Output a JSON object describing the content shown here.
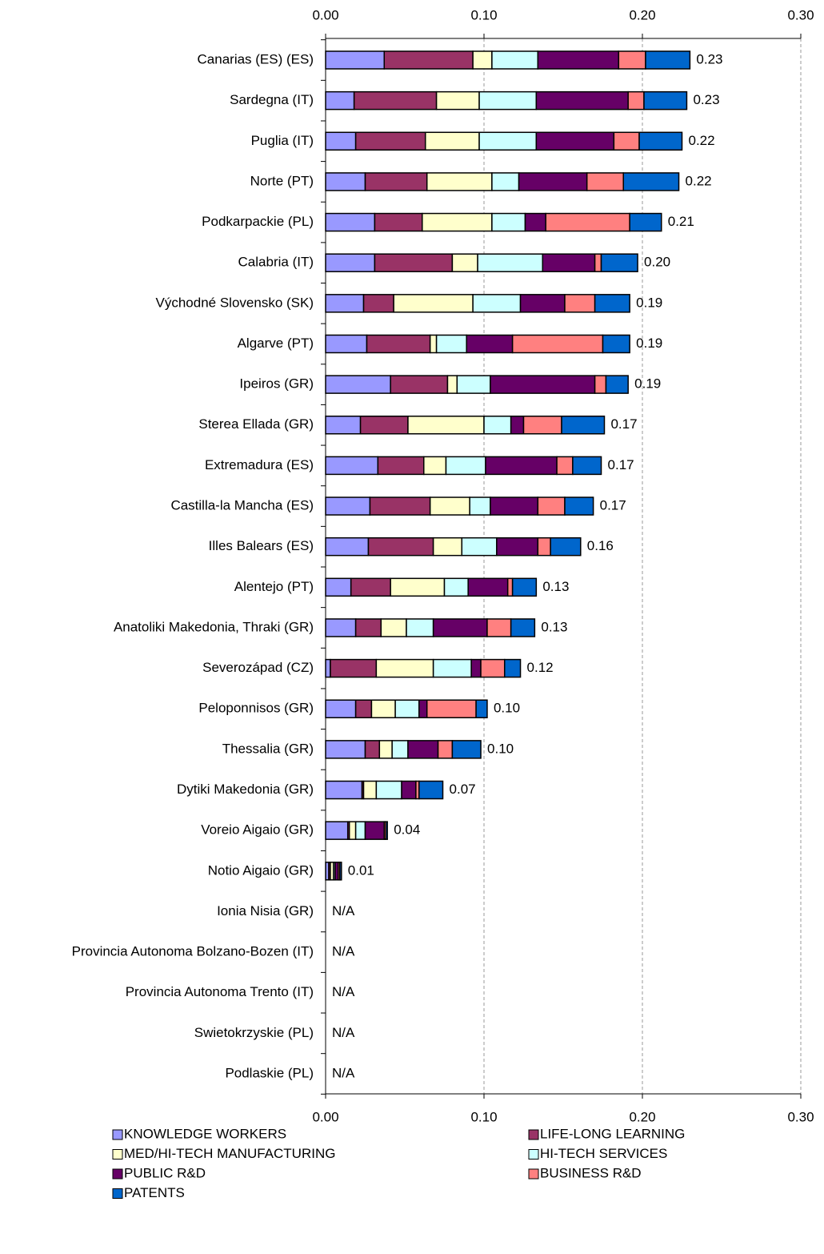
{
  "chart_data": {
    "type": "stacked-barh",
    "categories": [
      "Canarias (ES) (ES)",
      "Sardegna (IT)",
      "Puglia (IT)",
      "Norte (PT)",
      "Podkarpackie (PL)",
      "Calabria (IT)",
      "Východné Slovensko (SK)",
      "Algarve (PT)",
      "Ipeiros (GR)",
      "Sterea Ellada (GR)",
      "Extremadura (ES)",
      "Castilla-la Mancha (ES)",
      "Illes Balears (ES)",
      "Alentejo (PT)",
      "Anatoliki Makedonia, Thraki (GR)",
      "Severozápad (CZ)",
      "Peloponnisos (GR)",
      "Thessalia (GR)",
      "Dytiki Makedonia (GR)",
      "Voreio Aigaio (GR)",
      "Notio Aigaio (GR)",
      "Ionia Nisia (GR)",
      "Provincia Autonoma Bolzano-Bozen (IT)",
      "Provincia Autonoma Trento (IT)",
      "Swietokrzyskie (PL)",
      "Podlaskie (PL)"
    ],
    "series": [
      {
        "name": "KNOWLEDGE WORKERS",
        "color": "#9999ff",
        "values": [
          0.037,
          0.018,
          0.019,
          0.025,
          0.031,
          0.031,
          0.024,
          0.026,
          0.041,
          0.022,
          0.033,
          0.028,
          0.027,
          0.016,
          0.019,
          0.003,
          0.019,
          0.025,
          0.023,
          0.014,
          0.002,
          null,
          null,
          null,
          null,
          null
        ]
      },
      {
        "name": "LIFE-LONG LEARNING",
        "color": "#993366",
        "values": [
          0.056,
          0.052,
          0.044,
          0.039,
          0.03,
          0.049,
          0.019,
          0.04,
          0.036,
          0.03,
          0.029,
          0.038,
          0.041,
          0.025,
          0.016,
          0.029,
          0.01,
          0.009,
          0.001,
          0.001,
          0.001,
          null,
          null,
          null,
          null,
          null
        ]
      },
      {
        "name": "MED/HI-TECH MANUFACTURING",
        "color": "#ffffcc",
        "values": [
          0.012,
          0.027,
          0.034,
          0.041,
          0.044,
          0.016,
          0.05,
          0.004,
          0.006,
          0.048,
          0.014,
          0.025,
          0.018,
          0.034,
          0.016,
          0.036,
          0.015,
          0.008,
          0.008,
          0.004,
          0.002,
          null,
          null,
          null,
          null,
          null
        ]
      },
      {
        "name": "HI-TECH SERVICES",
        "color": "#ccffff",
        "values": [
          0.029,
          0.036,
          0.036,
          0.017,
          0.021,
          0.041,
          0.03,
          0.019,
          0.021,
          0.017,
          0.025,
          0.013,
          0.022,
          0.015,
          0.017,
          0.024,
          0.015,
          0.01,
          0.016,
          0.006,
          0.001,
          null,
          null,
          null,
          null,
          null
        ]
      },
      {
        "name": "PUBLIC R&D",
        "color": "#660066",
        "values": [
          0.051,
          0.058,
          0.049,
          0.043,
          0.013,
          0.033,
          0.028,
          0.029,
          0.066,
          0.008,
          0.045,
          0.03,
          0.026,
          0.025,
          0.034,
          0.006,
          0.005,
          0.019,
          0.009,
          0.012,
          0.002,
          null,
          null,
          null,
          null,
          null
        ]
      },
      {
        "name": "BUSINESS R&D",
        "color": "#ff8080",
        "values": [
          0.017,
          0.01,
          0.016,
          0.023,
          0.053,
          0.004,
          0.019,
          0.057,
          0.007,
          0.024,
          0.01,
          0.017,
          0.008,
          0.003,
          0.015,
          0.015,
          0.031,
          0.009,
          0.002,
          0.001,
          0.001,
          null,
          null,
          null,
          null,
          null
        ]
      },
      {
        "name": "PATENTS",
        "color": "#0066cc",
        "values": [
          0.028,
          0.027,
          0.027,
          0.035,
          0.02,
          0.023,
          0.022,
          0.017,
          0.014,
          0.027,
          0.018,
          0.018,
          0.019,
          0.015,
          0.015,
          0.01,
          0.007,
          0.018,
          0.015,
          0.001,
          0.001,
          null,
          null,
          null,
          null,
          null
        ]
      }
    ],
    "totals": [
      0.23,
      0.23,
      0.22,
      0.22,
      0.21,
      0.2,
      0.19,
      0.19,
      0.19,
      0.17,
      0.17,
      0.17,
      0.16,
      0.13,
      0.13,
      0.12,
      0.1,
      0.1,
      0.07,
      0.04,
      0.01,
      null,
      null,
      null,
      null,
      null
    ],
    "total_labels": [
      "0.23",
      "0.23",
      "0.22",
      "0.22",
      "0.21",
      "0.20",
      "0.19",
      "0.19",
      "0.19",
      "0.17",
      "0.17",
      "0.17",
      "0.16",
      "0.13",
      "0.13",
      "0.12",
      "0.10",
      "0.10",
      "0.07",
      "0.04",
      "0.01",
      "N/A",
      "N/A",
      "N/A",
      "N/A",
      "N/A"
    ],
    "xlim": [
      0,
      0.3
    ],
    "xticks": [
      {
        "value": 0,
        "label": "0.00"
      },
      {
        "value": 0.1,
        "label": "0.10"
      },
      {
        "value": 0.2,
        "label": "0.20"
      },
      {
        "value": 0.3,
        "label": "0.30"
      }
    ],
    "grid": true
  }
}
